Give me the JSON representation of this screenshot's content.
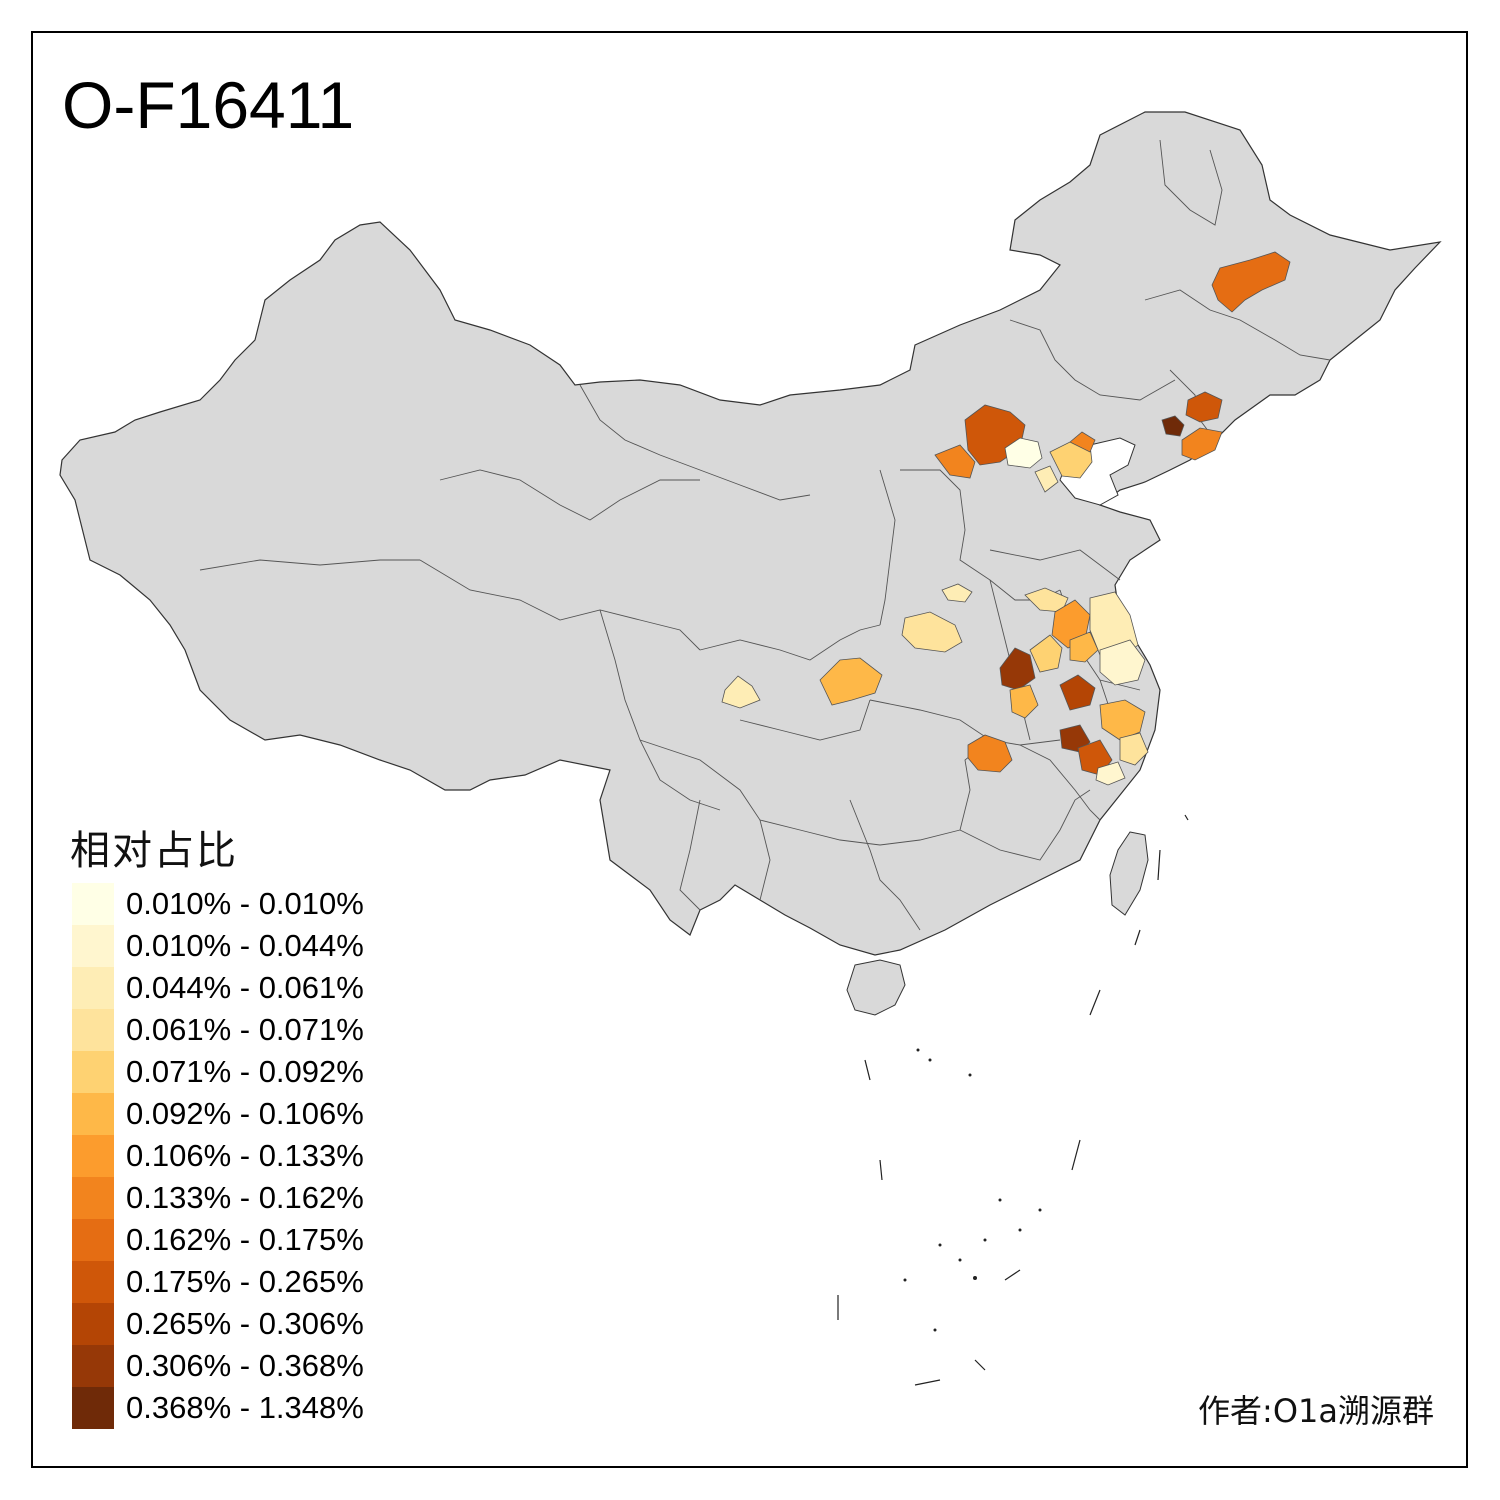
{
  "title": "O-F16411",
  "legend": {
    "title": "相对占比",
    "items": [
      {
        "label": "0.010% - 0.010%",
        "color": "#FFFFE6"
      },
      {
        "label": "0.010% - 0.044%",
        "color": "#FFF6CF"
      },
      {
        "label": "0.044% - 0.061%",
        "color": "#FEEDB5"
      },
      {
        "label": "0.061% - 0.071%",
        "color": "#FEE39C"
      },
      {
        "label": "0.071% - 0.092%",
        "color": "#FED272"
      },
      {
        "label": "0.092% - 0.106%",
        "color": "#FEB848"
      },
      {
        "label": "0.106% - 0.133%",
        "color": "#FC9C2D"
      },
      {
        "label": "0.133% - 0.162%",
        "color": "#F2841E"
      },
      {
        "label": "0.162% - 0.175%",
        "color": "#E56D13"
      },
      {
        "label": "0.175% - 0.265%",
        "color": "#CF5709"
      },
      {
        "label": "0.265% - 0.306%",
        "color": "#B44505"
      },
      {
        "label": "0.306% - 0.368%",
        "color": "#963807"
      },
      {
        "label": "0.368% - 1.348%",
        "color": "#6F2A08"
      }
    ]
  },
  "credit": "作者:O1a溯源群",
  "map": {
    "base_color": "#D9D9D9",
    "border_color": "#555555",
    "regions": [
      {
        "name": "harbin-area",
        "bin": 8
      },
      {
        "name": "zhangjiakou",
        "bin": 9
      },
      {
        "name": "datong-area",
        "bin": 7
      },
      {
        "name": "beijing",
        "bin": 0
      },
      {
        "name": "tangshan-qinhuangdao",
        "bin": 4
      },
      {
        "name": "tianjin",
        "bin": 2
      },
      {
        "name": "huludao-area",
        "bin": 7
      },
      {
        "name": "shenyang-area",
        "bin": 9
      },
      {
        "name": "jinzhou",
        "bin": 12
      },
      {
        "name": "dandong-area",
        "bin": 7
      },
      {
        "name": "zhengzhou-area",
        "bin": 2
      },
      {
        "name": "nanyang-area",
        "bin": 3
      },
      {
        "name": "ankang-area",
        "bin": 5
      },
      {
        "name": "chengdu-area",
        "bin": 2
      },
      {
        "name": "xuzhou-area",
        "bin": 3
      },
      {
        "name": "suqian-huaian",
        "bin": 6
      },
      {
        "name": "yancheng-area",
        "bin": 2
      },
      {
        "name": "fuyang-area",
        "bin": 11
      },
      {
        "name": "bengbu-area",
        "bin": 4
      },
      {
        "name": "lu-an-area",
        "bin": 5
      },
      {
        "name": "hefei-area",
        "bin": 10
      },
      {
        "name": "nanjing-area",
        "bin": 5
      },
      {
        "name": "shanghai-suzhou",
        "bin": 1
      },
      {
        "name": "hangzhou-area",
        "bin": 5
      },
      {
        "name": "jinhua-area",
        "bin": 3
      },
      {
        "name": "anqing-area",
        "bin": 11
      },
      {
        "name": "jiangxi-north",
        "bin": 9
      },
      {
        "name": "lishui-area",
        "bin": 1
      },
      {
        "name": "wuhan-area",
        "bin": 7
      }
    ]
  }
}
